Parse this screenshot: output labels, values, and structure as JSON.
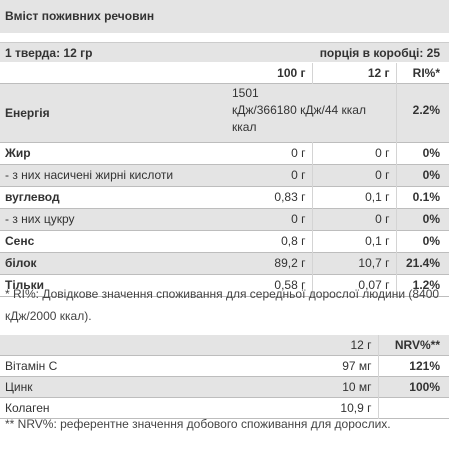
{
  "title": "Вміст поживних речовин",
  "serving": {
    "left": "1 тверда: 12 гр",
    "right": "порція в коробці: 25"
  },
  "nutrients": {
    "headers": [
      "",
      "100 г",
      "12 г",
      "RI%*"
    ],
    "energy": {
      "label": "Енергія",
      "per100": "1501 кДж/366180 кДж/44 ккал ккал",
      "line1": "1501",
      "line2": "кДж/366180 кДж/44 ккал",
      "line3": "ккал",
      "per_serving": "",
      "ri": "2.2%"
    },
    "rows": [
      {
        "label": "Жир",
        "per100": "0 г",
        "per_serving": "0 г",
        "ri": "0%"
      },
      {
        "label": "- з них насичені жирні кислоти",
        "per100": "0 г",
        "per_serving": "0 г",
        "ri": "0%"
      },
      {
        "label": "вуглевод",
        "per100": "0,83 г",
        "per_serving": "0,1 г",
        "ri": "0.1%"
      },
      {
        "label": "- з них цукру",
        "per100": "0 г",
        "per_serving": "0 г",
        "ri": "0%"
      },
      {
        "label": "Сенс",
        "per100": "0,8 г",
        "per_serving": "0,1 г",
        "ri": "0%"
      },
      {
        "label": "білок",
        "per100": "89,2 г",
        "per_serving": "10,7 г",
        "ri": "21.4%"
      },
      {
        "label": "Тільки",
        "per100": "0,58 г",
        "per_serving": "0,07 г",
        "ri": "1.2%"
      }
    ]
  },
  "ri_note": "* RI%: Довідкове значення споживання для середньої дорослої людини (8400 кДж/2000 ккал).",
  "vitamins": {
    "headers": [
      "",
      "12 г",
      "NRV%**"
    ],
    "rows": [
      {
        "label": "Вітамін С",
        "amount": "97 мг",
        "nrv": "121%"
      },
      {
        "label": "Цинк",
        "amount": "10 мг",
        "nrv": "100%"
      },
      {
        "label": "Колаген",
        "amount": "10,9 г",
        "nrv": ""
      }
    ]
  },
  "nrv_note": "** NRV%: референтне значення добового споживання для дорослих."
}
